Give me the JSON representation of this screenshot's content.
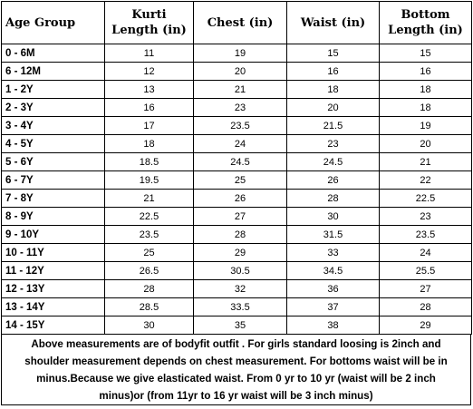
{
  "table": {
    "headers": [
      {
        "line1": "Age Group",
        "line2": ""
      },
      {
        "line1": "Kurti",
        "line2": "Length (in)"
      },
      {
        "line1": "Chest (in)",
        "line2": ""
      },
      {
        "line1": "Waist (in)",
        "line2": ""
      },
      {
        "line1": "Bottom",
        "line2": "Length (in)"
      }
    ],
    "rows": [
      [
        "0 - 6M",
        "11",
        "19",
        "15",
        "15"
      ],
      [
        "6 - 12M",
        "12",
        "20",
        "16",
        "16"
      ],
      [
        "1 - 2Y",
        "13",
        "21",
        "18",
        "18"
      ],
      [
        "2 - 3Y",
        "16",
        "23",
        "20",
        "18"
      ],
      [
        "3 - 4Y",
        "17",
        "23.5",
        "21.5",
        "19"
      ],
      [
        "4 - 5Y",
        "18",
        "24",
        "23",
        "20"
      ],
      [
        "5 - 6Y",
        "18.5",
        "24.5",
        "24.5",
        "21"
      ],
      [
        "6 - 7Y",
        "19.5",
        "25",
        "26",
        "22"
      ],
      [
        "7 - 8Y",
        "21",
        "26",
        "28",
        "22.5"
      ],
      [
        "8 - 9Y",
        "22.5",
        "27",
        "30",
        "23"
      ],
      [
        "9 - 10Y",
        "23.5",
        "28",
        "31.5",
        "23.5"
      ],
      [
        "10 - 11Y",
        "25",
        "29",
        "33",
        "24"
      ],
      [
        "11 - 12Y",
        "26.5",
        "30.5",
        "34.5",
        "25.5"
      ],
      [
        "12 - 13Y",
        "28",
        "32",
        "36",
        "27"
      ],
      [
        "13 - 14Y",
        "28.5",
        "33.5",
        "37",
        "28"
      ],
      [
        "14 - 15Y",
        "30",
        "35",
        "38",
        "29"
      ]
    ]
  },
  "note": {
    "line1": "Above measurements are of bodyfit outfit . For girls standard loosing is 2inch and",
    "line2": "shoulder measurement depends on chest measurement. For bottoms waist will be in",
    "line3": "minus.Because we give elasticated waist. From 0 yr to 10 yr (waist will be 2 inch",
    "line4": "minus)or (from 11yr to 16 yr waist will be 3 inch minus)"
  }
}
